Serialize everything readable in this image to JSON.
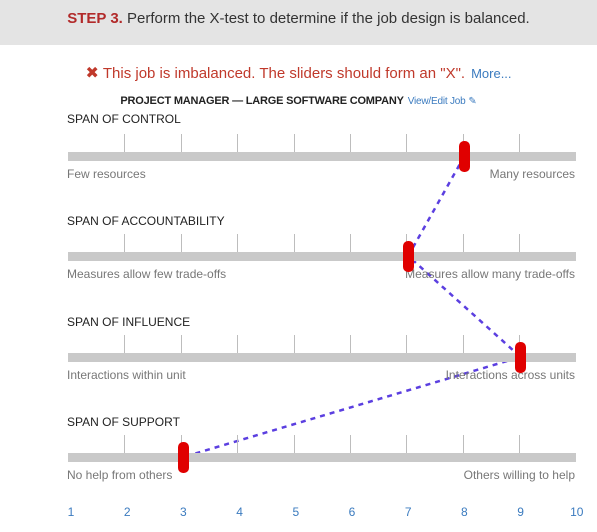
{
  "header": {
    "step_label": "STEP 3.",
    "step_text": " Perform the X-test to determine if the job design is balanced."
  },
  "status": {
    "icon": "close-icon",
    "message": "This job is imbalanced. The sliders should form an \"X\".",
    "more_link": "More..."
  },
  "job": {
    "title": "PROJECT MANAGER — LARGE SOFTWARE COMPANY",
    "edit_link": "View/Edit Job",
    "edit_icon": "pencil-icon"
  },
  "spans": [
    {
      "title": "SPAN OF CONTROL",
      "left_label": "Few resources",
      "right_label": "Many resources",
      "value": 8
    },
    {
      "title": "SPAN OF ACCOUNTABILITY",
      "left_label": "Measures allow few trade-offs",
      "right_label": "Measures allow many trade-offs",
      "value": 7
    },
    {
      "title": "SPAN OF INFLUENCE",
      "left_label": "Interactions within unit",
      "right_label": "Interactions across units",
      "value": 9
    },
    {
      "title": "SPAN OF SUPPORT",
      "left_label": "No help from others",
      "right_label": "Others willing to help",
      "value": 3
    }
  ],
  "scale": [
    "1",
    "2",
    "3",
    "4",
    "5",
    "6",
    "7",
    "8",
    "9",
    "10"
  ],
  "colors": {
    "handle": "#e00000",
    "connector": "#5b3fe0",
    "track": "#c9c9c9",
    "accent": "#3b7bbf",
    "error": "#c0392b"
  }
}
